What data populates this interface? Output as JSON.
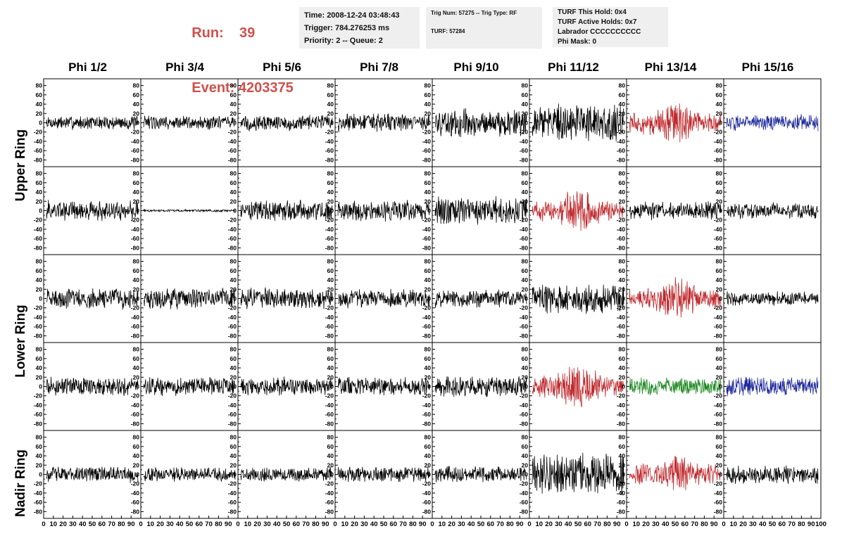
{
  "header": {
    "run_label": "Run:",
    "run_value": "39",
    "event_label": "Event:",
    "event_value": "4203375",
    "accent_color": "#d0504c"
  },
  "info_boxes": [
    {
      "id": "time-box",
      "lines": [
        "Time: 2008-12-24 03:48:43",
        "Trigger: 784.276253 ms",
        "Priority: 2 -- Queue: 2"
      ]
    },
    {
      "id": "trig-box",
      "lines": [
        "Trig Num: 57275 -- Trig Type: RF",
        "TURF: 57284"
      ]
    },
    {
      "id": "turf-box",
      "lines": [
        "TURF This Hold: 0x4",
        "TURF Active Holds: 0x7",
        "Labrador CCCCCCCCCC",
        "Phi Mask: 0"
      ]
    }
  ],
  "chart_data": {
    "type": "line",
    "columns": [
      "Phi 1/2",
      "Phi 3/4",
      "Phi 5/6",
      "Phi 7/8",
      "Phi 9/10",
      "Phi 11/12",
      "Phi 13/14",
      "Phi 15/16"
    ],
    "rows": [
      "Upper Ring",
      "Upper Ring",
      "Lower Ring",
      "Lower Ring",
      "Nadir Ring"
    ],
    "row_labels": [
      "Upper Ring",
      "Lower Ring",
      "Nadir Ring"
    ],
    "ylim": [
      -90,
      90
    ],
    "yticks": [
      -80,
      -60,
      -40,
      -20,
      0,
      20,
      40,
      60,
      80
    ],
    "xlim": [
      0,
      100
    ],
    "xticks": [
      0,
      10,
      20,
      30,
      40,
      50,
      60,
      70,
      80,
      90,
      100
    ],
    "grid": false,
    "colors": {
      "black": "#000000",
      "red": "#c0282c",
      "blue": "#1f2a9c",
      "green": "#1e8a22"
    },
    "amplitudes": [
      [
        12,
        12,
        14,
        16,
        24,
        32,
        28,
        14
      ],
      [
        18,
        2,
        18,
        18,
        24,
        28,
        16,
        14
      ],
      [
        18,
        18,
        18,
        16,
        16,
        26,
        28,
        12
      ],
      [
        16,
        16,
        16,
        16,
        18,
        30,
        16,
        16
      ],
      [
        14,
        12,
        12,
        14,
        14,
        36,
        26,
        16
      ]
    ],
    "trace_colors": [
      [
        "black",
        "black",
        "black",
        "black",
        "black",
        "black",
        "red",
        "blue"
      ],
      [
        "black",
        "black",
        "black",
        "black",
        "black",
        "red",
        "black",
        "black"
      ],
      [
        "black",
        "black",
        "black",
        "black",
        "black",
        "black",
        "red",
        "black"
      ],
      [
        "black",
        "black",
        "black",
        "black",
        "black",
        "red",
        "green",
        "blue"
      ],
      [
        "black",
        "black",
        "black",
        "black",
        "black",
        "black",
        "red",
        "black"
      ]
    ]
  }
}
